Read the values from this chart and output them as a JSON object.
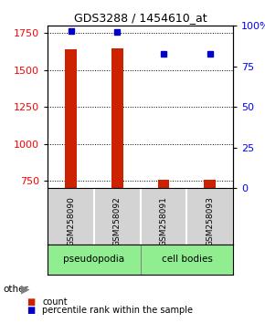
{
  "title": "GDS3288 / 1454610_at",
  "samples": [
    "GSM258090",
    "GSM258092",
    "GSM258091",
    "GSM258093"
  ],
  "count_values": [
    1640,
    1650,
    755,
    760
  ],
  "percentile_values": [
    97,
    96,
    83,
    83
  ],
  "ylim_left": [
    700,
    1800
  ],
  "ylim_right": [
    0,
    100
  ],
  "yticks_left": [
    750,
    1000,
    1250,
    1500,
    1750
  ],
  "yticks_right": [
    0,
    25,
    50,
    75,
    100
  ],
  "ytick_right_labels": [
    "0",
    "25",
    "50",
    "75",
    "100%"
  ],
  "groups": [
    {
      "label": "pseudopodia",
      "color": "#90ee90",
      "samples": [
        0,
        1
      ]
    },
    {
      "label": "cell bodies",
      "color": "#90ee90",
      "samples": [
        2,
        3
      ]
    }
  ],
  "bar_color": "#cc2200",
  "dot_color": "#0000cc",
  "background_color": "#ffffff",
  "plot_bg_color": "#ffffff",
  "label_area_bg": "#d3d3d3",
  "grid_color": "#000000",
  "count_label": "count",
  "percentile_label": "percentile rank within the sample",
  "other_label": "other"
}
